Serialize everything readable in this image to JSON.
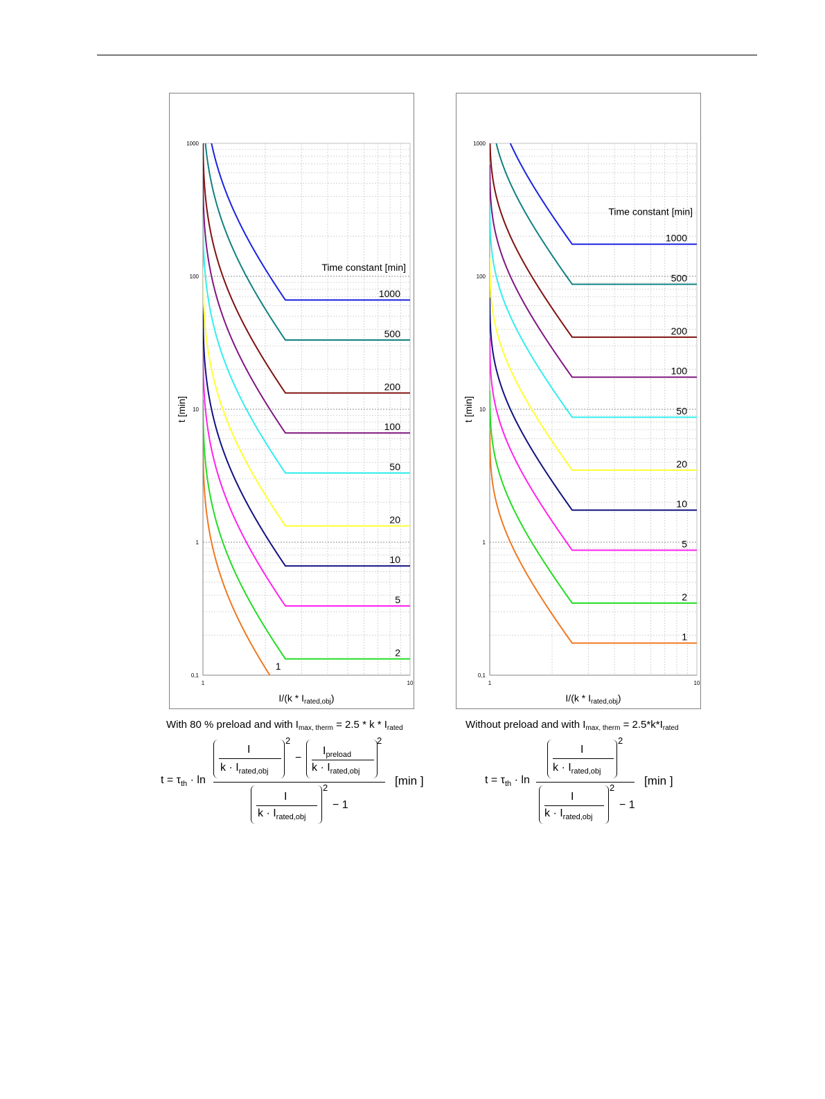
{
  "charts": [
    {
      "id": "left",
      "caption": {
        "prefix": "With 80 % preload and with I",
        "sub1": "max, therm",
        "middle": " = 2.5 * k * I",
        "sub2": "rated"
      },
      "formula": {
        "lhs": "t = τ",
        "lhs_sub": "th",
        "ln": " · ln",
        "I": "I",
        "I_preload": "I",
        "preload_sub": "preload",
        "k_I": "k · I",
        "rated_sub": "rated,obj",
        "minus": "−",
        "minus_one": "− 1",
        "power": "2",
        "unit": "[min ]"
      }
    },
    {
      "id": "right",
      "caption": {
        "prefix": "Without preload and with I",
        "sub1": "max, therm",
        "middle": " = 2.5*k*I",
        "sub2": "rated"
      },
      "formula": {
        "lhs": "t = τ",
        "lhs_sub": "th",
        "ln": " · ln",
        "I": "I",
        "k_I": "k · I",
        "rated_sub": "rated,obj",
        "minus_one": "− 1",
        "power": "2",
        "unit": "[min ]"
      }
    }
  ],
  "chart_data": [
    {
      "type": "line",
      "id": "left",
      "title": "",
      "xlabel": "I/(k * I",
      "xlabel_sub": "rated,obj",
      "xlabel_end": ")",
      "ylabel": "t [min]",
      "xscale": "log",
      "yscale": "log",
      "xlim": [
        1,
        10
      ],
      "ylim": [
        0.1,
        1000
      ],
      "x_ticks": [
        "1",
        "10"
      ],
      "y_ticks": [
        "0,1",
        "1",
        "10",
        "100",
        "1000"
      ],
      "grid": true,
      "legend_title": "Time constant [min]",
      "formula": "preload",
      "preload_ratio": 0.8,
      "curve_limit_x": 2.5,
      "series": [
        {
          "name": "1",
          "tau": 1,
          "color": "#f07820"
        },
        {
          "name": "2",
          "tau": 2,
          "color": "#22dd22"
        },
        {
          "name": "5",
          "tau": 5,
          "color": "#ff22ee"
        },
        {
          "name": "10",
          "tau": 10,
          "color": "#101080"
        },
        {
          "name": "20",
          "tau": 20,
          "color": "#ffff33"
        },
        {
          "name": "50",
          "tau": 50,
          "color": "#33eeee"
        },
        {
          "name": "100",
          "tau": 100,
          "color": "#801680"
        },
        {
          "name": "200",
          "tau": 200,
          "color": "#801010"
        },
        {
          "name": "500",
          "tau": 500,
          "color": "#108080"
        },
        {
          "name": "1000",
          "tau": 1000,
          "color": "#1a22e0"
        }
      ]
    },
    {
      "type": "line",
      "id": "right",
      "title": "",
      "xlabel": "I/(k * I",
      "xlabel_sub": "rated,obj",
      "xlabel_end": ")",
      "ylabel": "t [min]",
      "xscale": "log",
      "yscale": "log",
      "xlim": [
        1,
        10
      ],
      "ylim": [
        0.1,
        1000
      ],
      "x_ticks": [
        "1",
        "10"
      ],
      "y_ticks": [
        "0,1",
        "1",
        "10",
        "100",
        "1000"
      ],
      "grid": true,
      "legend_title": "Time constant [min]",
      "formula": "no_preload",
      "preload_ratio": 0,
      "curve_limit_x": 2.5,
      "series": [
        {
          "name": "1",
          "tau": 1,
          "color": "#f07820"
        },
        {
          "name": "2",
          "tau": 2,
          "color": "#22dd22"
        },
        {
          "name": "5",
          "tau": 5,
          "color": "#ff22ee"
        },
        {
          "name": "10",
          "tau": 10,
          "color": "#101080"
        },
        {
          "name": "20",
          "tau": 20,
          "color": "#ffff33"
        },
        {
          "name": "50",
          "tau": 50,
          "color": "#33eeee"
        },
        {
          "name": "100",
          "tau": 100,
          "color": "#801680"
        },
        {
          "name": "200",
          "tau": 200,
          "color": "#801010"
        },
        {
          "name": "500",
          "tau": 500,
          "color": "#108080"
        },
        {
          "name": "1000",
          "tau": 1000,
          "color": "#1a22e0"
        }
      ]
    }
  ]
}
